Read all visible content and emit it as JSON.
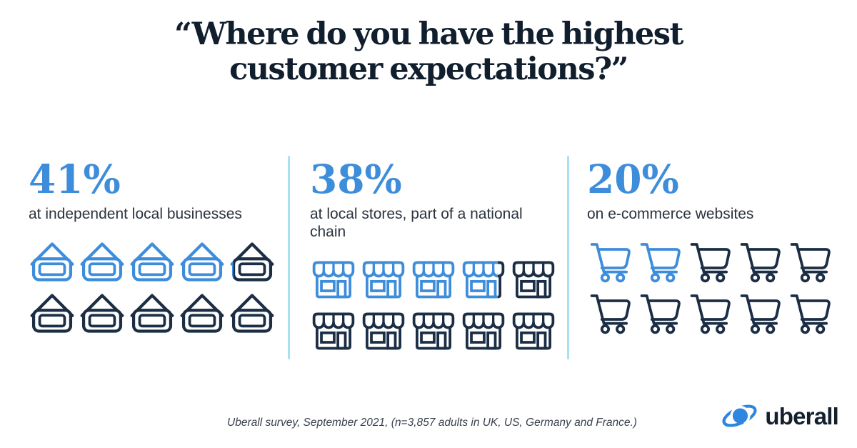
{
  "title": {
    "line1": "“Where do you have the highest",
    "line2": "customer expectations?”"
  },
  "columns": [
    {
      "percent": "41%",
      "label": "at independent local businesses",
      "icon": "house-sign-icon",
      "total_icons": 10,
      "highlighted_icons": 4.1,
      "icons_per_row": 5
    },
    {
      "percent": "38%",
      "label": "at local stores, part of a national chain",
      "icon": "storefront-icon",
      "total_icons": 10,
      "highlighted_icons": 3.8,
      "icons_per_row": 5
    },
    {
      "percent": "20%",
      "label": "on e-commerce websites",
      "icon": "shopping-cart-icon",
      "total_icons": 10,
      "highlighted_icons": 2,
      "icons_per_row": 5
    }
  ],
  "footer": {
    "note": "Uberall survey, September 2021, (n=3,857 adults in UK, US, Germany and France.)",
    "brand_name": "uberall"
  },
  "colors": {
    "accent_blue": "#3E8DDB",
    "dark_navy": "#1B2E45",
    "divider_blue": "#ABDFF3",
    "title_navy": "#111E2D",
    "logo_blue": "#2E86E0"
  },
  "chart_data": {
    "type": "bar",
    "variant": "pictogram",
    "title": "“Where do you have the highest customer expectations?”",
    "categories": [
      "at independent local businesses",
      "at local stores, part of a national chain",
      "on e-commerce websites"
    ],
    "values": [
      41,
      38,
      20
    ],
    "unit": "%",
    "icons_per_category": 10,
    "highlighted_icons": [
      4.1,
      3.8,
      2
    ],
    "legend_position": "none",
    "annotation": "Uberall survey, September 2021, (n=3,857 adults in UK, US, Germany and France.)"
  }
}
